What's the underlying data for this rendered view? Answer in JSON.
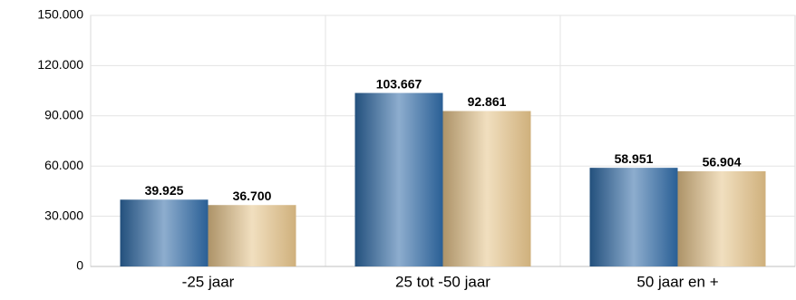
{
  "chart_data": {
    "type": "bar",
    "categories": [
      "-25 jaar",
      "25 tot -50 jaar",
      "50 jaar en +"
    ],
    "series": [
      {
        "color": "#2f6aa6",
        "values": [
          39925,
          103667,
          58951
        ],
        "value_labels": [
          "39.925",
          "103.667",
          "58.951"
        ]
      },
      {
        "color": "#e6c48a",
        "values": [
          36700,
          92861,
          56904
        ],
        "value_labels": [
          "36.700",
          "92.861",
          "56.904"
        ]
      }
    ],
    "ylim": [
      0,
      150000
    ],
    "yticks": [
      0,
      {
        "value": 30000,
        "label": "30.000"
      },
      {
        "value": 60000,
        "label": "60.000"
      },
      {
        "value": 90000,
        "label": "90.000"
      },
      {
        "value": 120000,
        "label": "120.000"
      },
      {
        "value": 150000,
        "label": "150.000"
      }
    ],
    "grid": true
  }
}
